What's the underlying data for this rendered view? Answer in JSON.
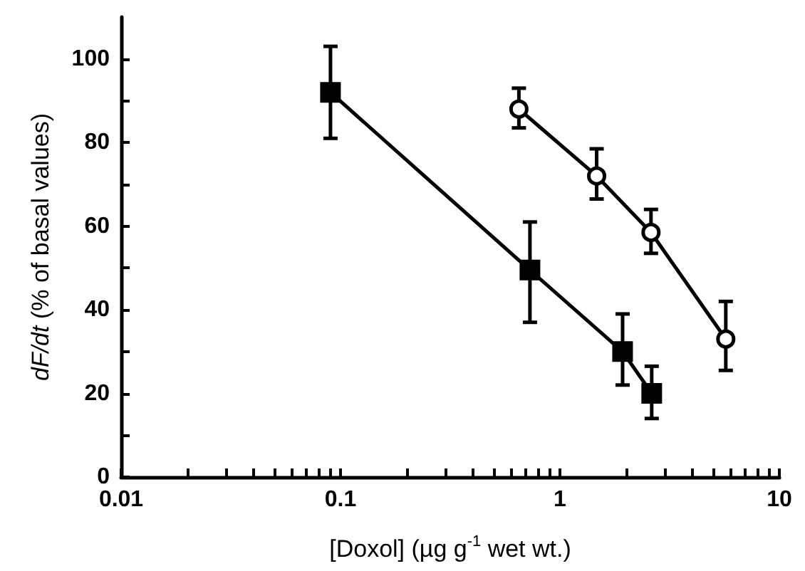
{
  "chart_data": {
    "type": "line",
    "xlabel": "[Doxol] (µg g$^{-1}$ wet wt.)",
    "ylabel": "dF/dt (% of basal values)",
    "log": "x",
    "xlim": [
      0.01,
      10
    ],
    "xticks": [
      0.01,
      {
        "value": 0.02,
        "label": null
      },
      {
        "value": 0.03,
        "label": null
      },
      {
        "value": 0.04,
        "label": null
      },
      {
        "value": 0.05,
        "label": null
      },
      {
        "value": 0.06,
        "label": null
      },
      {
        "value": 0.07,
        "label": null
      },
      {
        "value": 0.08,
        "label": null
      },
      {
        "value": 0.09,
        "label": null
      },
      0.1,
      {
        "value": 0.2,
        "label": null
      },
      {
        "value": 0.3,
        "label": null
      },
      {
        "value": 0.4,
        "label": null
      },
      {
        "value": 0.5,
        "label": null
      },
      {
        "value": 0.6,
        "label": null
      },
      {
        "value": 0.7,
        "label": null
      },
      {
        "value": 0.8,
        "label": null
      },
      {
        "value": 0.9,
        "label": null
      },
      1,
      {
        "value": 2,
        "label": null
      },
      {
        "value": 3,
        "label": null
      },
      {
        "value": 4,
        "label": null
      },
      {
        "value": 5,
        "label": null
      },
      {
        "value": 6,
        "label": null
      },
      {
        "value": 7,
        "label": null
      },
      {
        "value": 8,
        "label": null
      },
      {
        "value": 9,
        "label": null
      },
      10
    ],
    "ylim": [
      0,
      110
    ],
    "yticks": [
      0,
      {
        "value": 10,
        "label": null
      },
      20,
      {
        "value": 30,
        "label": null
      },
      40,
      {
        "value": 50,
        "label": null
      },
      60,
      {
        "value": 70,
        "label": null
      },
      80,
      {
        "value": 90,
        "label": null
      },
      100
    ],
    "grid": false,
    "line_style": "solid",
    "series": [
      {
        "color": "#000000",
        "marker": "square",
        "x": [
          0.09,
          0.73,
          1.93,
          2.62
        ],
        "values": [
          92,
          49.5,
          30,
          20
        ],
        "errors": [
          [
            81,
            103
          ],
          [
            37,
            61
          ],
          [
            22,
            39
          ],
          [
            14,
            26.5
          ]
        ]
      },
      {
        "color": "#000000",
        "marker": "circle",
        "x": [
          0.65,
          1.47,
          2.6,
          5.7
        ],
        "values": [
          88,
          72,
          58.5,
          33
        ],
        "errors": [
          [
            83.5,
            93
          ],
          [
            66.5,
            78.5
          ],
          [
            53.5,
            64
          ],
          [
            25.5,
            42
          ]
        ]
      }
    ]
  }
}
